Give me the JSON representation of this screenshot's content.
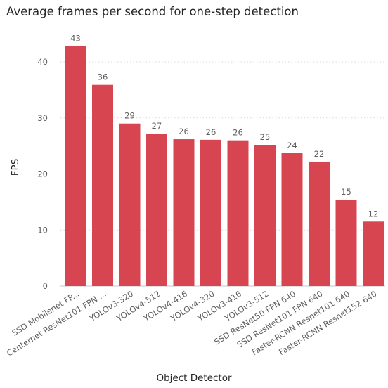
{
  "chart_data": {
    "type": "bar",
    "title": "Average frames per second for one-step detection",
    "xlabel": "Object Detector",
    "ylabel": "FPS",
    "categories": [
      "SSD Mobilenet FP...",
      "Centernet ResNet101 FPN ...",
      "YOLOv3-320",
      "YOLOv4-512",
      "YOLOv4-416",
      "YOLOv4-320",
      "YOLOv3-416",
      "YOLOv3-512",
      "SSD ResNet50 FPN 640",
      "SSD ResNet101 FPN 640",
      "Faster-RCNN Resnet101 640",
      "Faster-RCNN Resnet152 640"
    ],
    "values": [
      42.8,
      35.9,
      29.0,
      27.2,
      26.2,
      26.1,
      26.0,
      25.2,
      23.7,
      22.2,
      15.4,
      11.5
    ],
    "data_labels": [
      "43",
      "36",
      "29",
      "27",
      "26",
      "26",
      "26",
      "25",
      "24",
      "22",
      "15",
      "12"
    ],
    "yticks": [
      "0",
      "10",
      "20",
      "30",
      "40"
    ],
    "ylim": [
      0,
      45
    ],
    "grid": true,
    "bar_color": "#d64550",
    "grid_color": "#d9d9d9",
    "label_color": "#605e5c"
  }
}
